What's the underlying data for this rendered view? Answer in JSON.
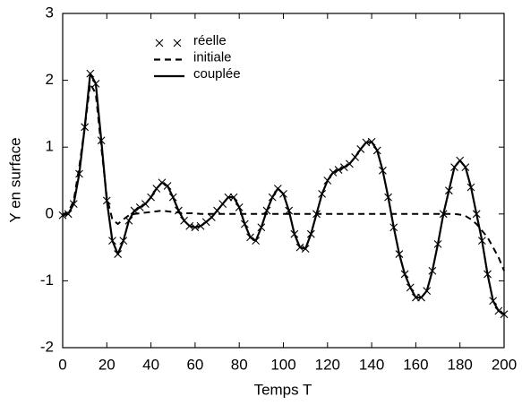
{
  "chart_data": {
    "type": "line",
    "xlabel": "Temps T",
    "ylabel": "Y en surface",
    "x": [
      0,
      2.5,
      5,
      7.5,
      10,
      12.5,
      15,
      17.5,
      20,
      22.5,
      25,
      27.5,
      30,
      32.5,
      35,
      37.5,
      40,
      42.5,
      45,
      47.5,
      50,
      52.5,
      55,
      57.5,
      60,
      62.5,
      65,
      67.5,
      70,
      72.5,
      75,
      77.5,
      80,
      82.5,
      85,
      87.5,
      90,
      92.5,
      95,
      97.5,
      100,
      102.5,
      105,
      107.5,
      110,
      112.5,
      115,
      117.5,
      120,
      122.5,
      125,
      127.5,
      130,
      132.5,
      135,
      137.5,
      140,
      142.5,
      145,
      147.5,
      150,
      152.5,
      155,
      157.5,
      160,
      162.5,
      165,
      167.5,
      170,
      172.5,
      175,
      177.5,
      180,
      182.5,
      185,
      187.5,
      190,
      192.5,
      195,
      197.5,
      200
    ],
    "series": [
      {
        "name": "réelle",
        "color": "#000000",
        "style": "marker",
        "values": [
          -0.02,
          0,
          0.15,
          0.6,
          1.3,
          2.1,
          1.95,
          1.1,
          0.2,
          -0.4,
          -0.6,
          -0.4,
          -0.1,
          0.05,
          0.1,
          0.15,
          0.25,
          0.38,
          0.47,
          0.42,
          0.25,
          0.05,
          -0.1,
          -0.18,
          -0.2,
          -0.18,
          -0.12,
          -0.05,
          0.05,
          0.15,
          0.25,
          0.25,
          0.1,
          -0.15,
          -0.35,
          -0.4,
          -0.2,
          0.05,
          0.25,
          0.38,
          0.3,
          0.05,
          -0.3,
          -0.5,
          -0.52,
          -0.3,
          0,
          0.3,
          0.5,
          0.62,
          0.66,
          0.7,
          0.75,
          0.85,
          0.97,
          1.07,
          1.08,
          0.95,
          0.65,
          0.25,
          -0.2,
          -0.6,
          -0.9,
          -1.1,
          -1.25,
          -1.25,
          -1.15,
          -0.85,
          -0.45,
          0,
          0.35,
          0.7,
          0.8,
          0.7,
          0.4,
          0,
          -0.4,
          -0.9,
          -1.3,
          -1.45,
          -1.5
        ]
      },
      {
        "name": "initiale",
        "color": "#000000",
        "style": "dashed",
        "values": [
          0,
          0.02,
          0.2,
          0.7,
          1.3,
          1.95,
          1.8,
          1,
          0.25,
          -0.08,
          -0.15,
          -0.08,
          -0.02,
          0,
          0.01,
          0.02,
          0.03,
          0.04,
          0.05,
          0.04,
          0.03,
          0.02,
          0.01,
          0.01,
          0.01,
          0,
          0,
          0,
          0,
          0,
          0,
          0,
          0,
          0,
          0,
          0,
          0,
          0,
          0,
          0,
          0,
          0,
          0,
          0,
          0,
          0,
          0,
          0,
          0,
          0,
          0,
          0,
          0,
          0,
          0,
          0,
          0,
          0,
          0,
          0,
          0,
          0,
          0,
          0,
          0,
          0,
          0,
          0,
          0,
          0,
          0,
          0,
          -0.01,
          -0.03,
          -0.08,
          -0.15,
          -0.25,
          -0.35,
          -0.5,
          -0.65,
          -0.85
        ]
      },
      {
        "name": "couplée",
        "color": "#000000",
        "style": "solid",
        "values": [
          -0.02,
          0,
          0.15,
          0.6,
          1.3,
          2.1,
          1.95,
          1.1,
          0.2,
          -0.4,
          -0.6,
          -0.4,
          -0.1,
          0.05,
          0.1,
          0.15,
          0.25,
          0.38,
          0.47,
          0.42,
          0.25,
          0.05,
          -0.1,
          -0.18,
          -0.2,
          -0.18,
          -0.12,
          -0.05,
          0.05,
          0.15,
          0.25,
          0.25,
          0.1,
          -0.15,
          -0.35,
          -0.4,
          -0.2,
          0.05,
          0.25,
          0.38,
          0.3,
          0.05,
          -0.3,
          -0.5,
          -0.52,
          -0.3,
          0,
          0.3,
          0.5,
          0.62,
          0.66,
          0.7,
          0.75,
          0.85,
          0.97,
          1.07,
          1.08,
          0.95,
          0.65,
          0.25,
          -0.2,
          -0.6,
          -0.9,
          -1.1,
          -1.25,
          -1.25,
          -1.15,
          -0.85,
          -0.45,
          0,
          0.35,
          0.7,
          0.8,
          0.7,
          0.4,
          0,
          -0.4,
          -0.9,
          -1.3,
          -1.45,
          -1.5
        ]
      }
    ],
    "xlim": [
      0,
      200
    ],
    "xticks": [
      0,
      20,
      40,
      60,
      80,
      100,
      120,
      140,
      160,
      180,
      200
    ],
    "ylim": [
      -2,
      3
    ],
    "yticks": [
      -2,
      -1,
      0,
      1,
      2,
      3
    ],
    "grid": false,
    "legend": "upper left"
  }
}
